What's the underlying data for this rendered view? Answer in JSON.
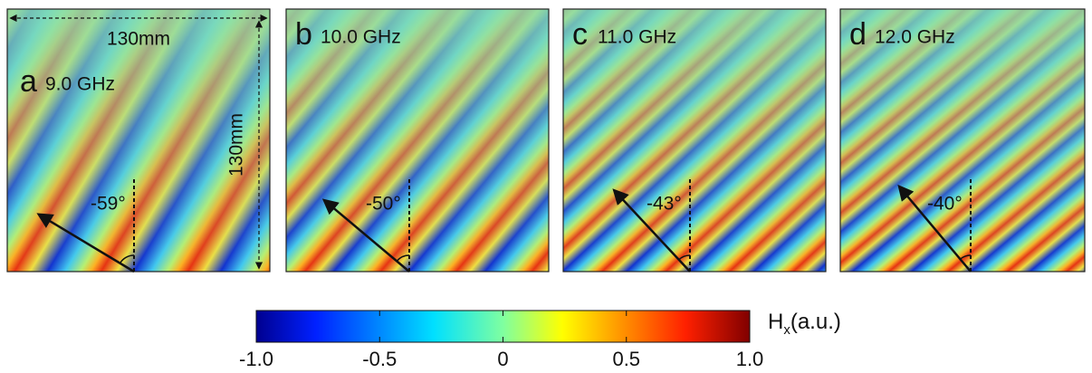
{
  "panels": [
    {
      "letter": "a",
      "frequency": "9.0 GHz",
      "angle": "-59°"
    },
    {
      "letter": "b",
      "frequency": "10.0 GHz",
      "angle": "-50°"
    },
    {
      "letter": "c",
      "frequency": "11.0 GHz",
      "angle": "-43°"
    },
    {
      "letter": "d",
      "frequency": "12.0 GHz",
      "angle": "-40°"
    }
  ],
  "dimensions": {
    "width": "130mm",
    "height": "130mm"
  },
  "colorbar": {
    "label": "H",
    "label_subscript": "x",
    "label_unit": "(a.u.)",
    "range": [
      -1,
      1
    ],
    "ticks": [
      {
        "value": -1,
        "label": "-1.0"
      },
      {
        "value": -0.5,
        "label": "-0.5"
      },
      0,
      0.5,
      {
        "value": 1,
        "label": "1.0"
      }
    ]
  }
}
